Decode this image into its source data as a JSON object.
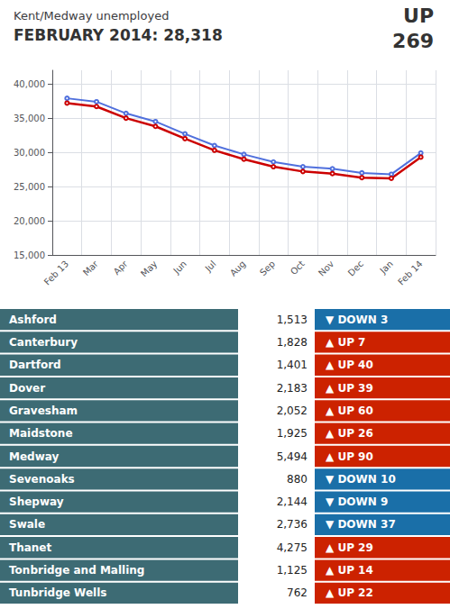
{
  "chart_data": [
    {
      "type": "line",
      "title": "Kent/Medway unemployed",
      "subtitle": "FEBRUARY 2014: 28,318",
      "annotations": [
        "UP",
        "269"
      ],
      "categories": [
        "Feb 13",
        "Mar",
        "Apr",
        "May",
        "Jun",
        "Jul",
        "Aug",
        "Sep",
        "Oct",
        "Nov",
        "Dec",
        "Jan",
        "Feb 14"
      ],
      "series": [
        {
          "values": [
            37900,
            37400,
            35700,
            34500,
            32700,
            31000,
            29700,
            28600,
            27900,
            27600,
            27000,
            26800,
            29900
          ]
        },
        {
          "color": "#cc0000",
          "values": [
            37200,
            36700,
            35000,
            33800,
            32000,
            30300,
            29000,
            27900,
            27200,
            26900,
            26300,
            26200,
            29300
          ]
        }
      ],
      "ylim": [
        15000,
        42000
      ],
      "yticks": [
        {
          "value": 15000,
          "label": "15,000"
        },
        {
          "value": 20000,
          "label": "20,000"
        },
        {
          "value": 25000,
          "label": "25,000"
        },
        {
          "value": 30000,
          "label": "30,000"
        },
        {
          "value": 35000,
          "label": "35,000"
        },
        {
          "value": 40000,
          "label": "40,000"
        }
      ],
      "grid": true
    },
    {
      "type": "table",
      "color": "#3d6b74",
      "categories": [
        "Ashford",
        "Canterbury",
        "Dartford",
        "Dover",
        "Gravesham",
        "Maidstone",
        "Medway",
        "Sevenoaks",
        "Shepway",
        "Swale",
        "Thanet",
        "Tonbridge and Malling",
        "Tunbridge Wells"
      ],
      "series": [
        {
          "values": [
            1513,
            1828,
            1401,
            2183,
            2052,
            1925,
            5494,
            880,
            2144,
            2736,
            4275,
            1125,
            762
          ],
          "value_labels": [
            "1,513",
            "1,828",
            "1,401",
            "2,183",
            "2,052",
            "1,925",
            "5,494",
            "880",
            "2,144",
            "2,736",
            "4,275",
            "1,125",
            "762"
          ]
        },
        {
          "values": [
            -3,
            7,
            40,
            39,
            60,
            26,
            90,
            -10,
            -9,
            -37,
            29,
            14,
            22
          ],
          "value_labels": [
            "▼ DOWN 3",
            "▲ UP 7",
            "▲ UP 40",
            "▲ UP 39",
            "▲ UP 60",
            "▲ UP 26",
            "▲ UP 90",
            "▼ DOWN 10",
            "▼ DOWN 9",
            "▼ DOWN 37",
            "▲ UP 29",
            "▲ UP 14",
            "▲ UP 22"
          ],
          "colors": [
            "#1a6fa8",
            "#cc2200",
            "#cc2200",
            "#cc2200",
            "#cc2200",
            "#cc2200",
            "#cc2200",
            "#1a6fa8",
            "#1a6fa8",
            "#1a6fa8",
            "#cc2200",
            "#cc2200",
            "#cc2200"
          ]
        }
      ]
    }
  ]
}
